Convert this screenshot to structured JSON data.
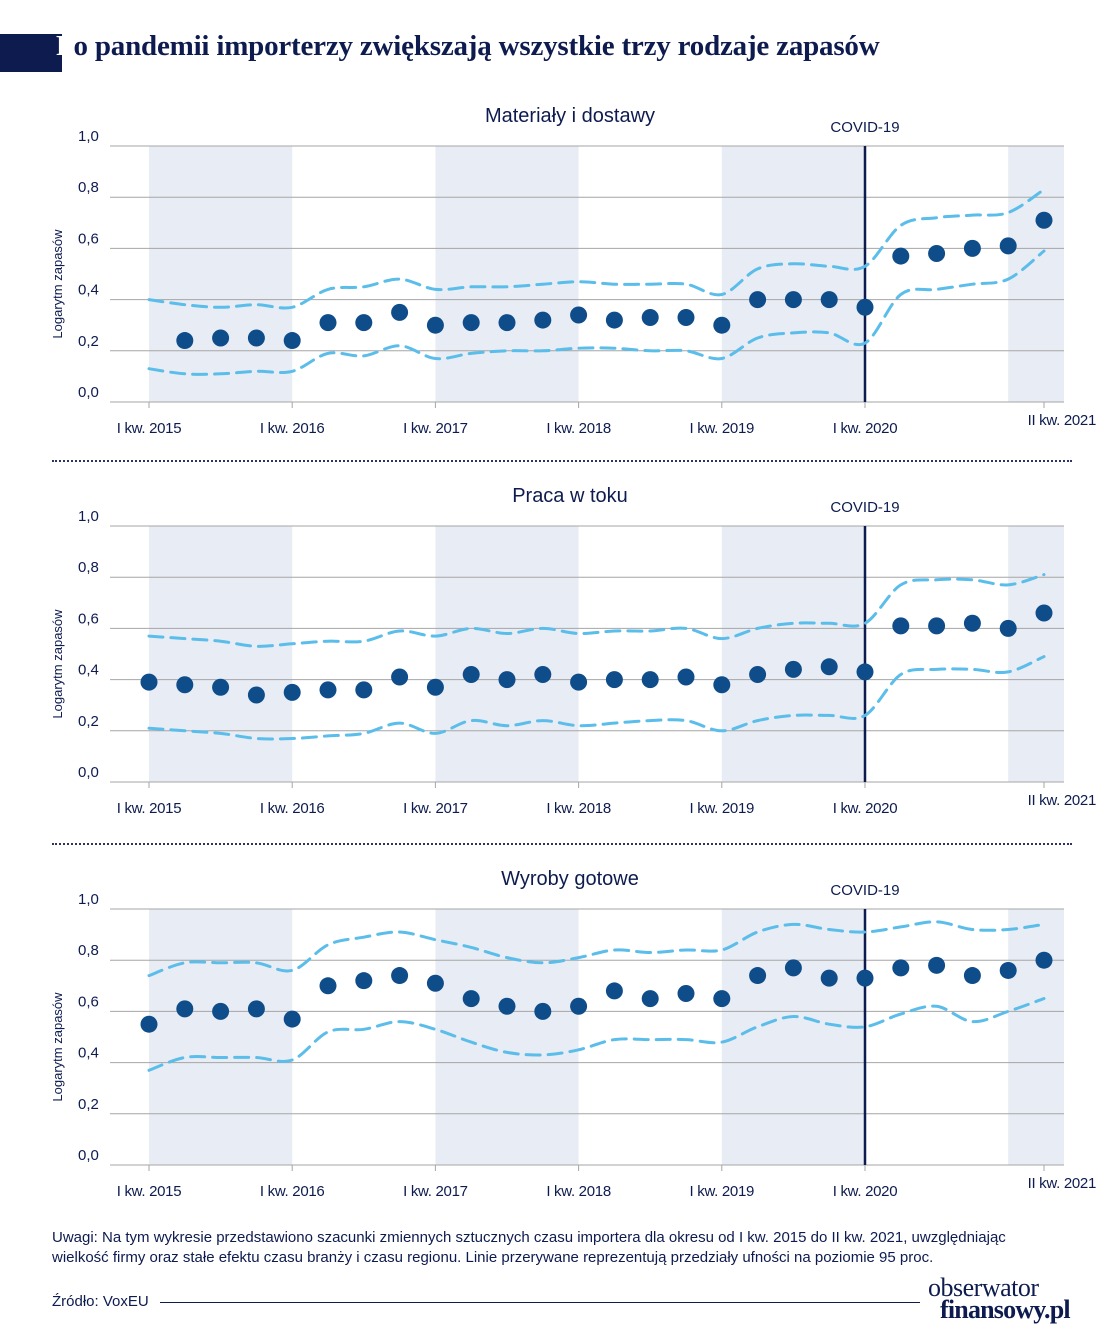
{
  "title": {
    "first_letter": "P",
    "rest": "o pandemii importerzy zwiększają wszystkie trzy rodzaje zapasów"
  },
  "colors": {
    "navy": "#0d1b4f",
    "dots": "#0f4c8a",
    "ci": "#5bbdea",
    "shade": "#e8ecf4",
    "grid": "#a6a6a6"
  },
  "note": "Uwagi: Na tym wykresie przedstawiono szacunki zmiennych sztucznych czasu importera dla okresu od I kw. 2015 do II kw. 2021, uwzględniając wielkość firmy oraz stałe efektu czasu branży i czasu regionu. Linie przerywane reprezentują przedziały ufności na poziomie 95 proc.",
  "source": "Źródło: VoxEU",
  "logo": {
    "line1": "obserwator",
    "line2": "finansowy.pl"
  },
  "chart_data": [
    {
      "type": "scatter",
      "title": "Materiały i dostawy",
      "ylabel": "Logarytm zapasów",
      "ylim": [
        0,
        1
      ],
      "yticks": [
        "0,0",
        "0,2",
        "0,4",
        "0,6",
        "0,8",
        "1,0"
      ],
      "xticks": [
        "I kw. 2015",
        "I kw. 2016",
        "I kw. 2017",
        "I kw. 2018",
        "I kw. 2019",
        "I kw. 2020",
        "II kw. 2021"
      ],
      "shaded_years": [
        "2015",
        "2017",
        "2019",
        "2021"
      ],
      "event_label": "COVID-19",
      "event_x": "I kw. 2020",
      "x": [
        "I kw. 2015",
        "II kw. 2015",
        "III kw. 2015",
        "IV kw. 2015",
        "I kw. 2016",
        "II kw. 2016",
        "III kw. 2016",
        "IV kw. 2016",
        "I kw. 2017",
        "II kw. 2017",
        "III kw. 2017",
        "IV kw. 2017",
        "I kw. 2018",
        "II kw. 2018",
        "III kw. 2018",
        "IV kw. 2018",
        "I kw. 2019",
        "II kw. 2019",
        "III kw. 2019",
        "IV kw. 2019",
        "I kw. 2020",
        "II kw. 2020",
        "III kw. 2020",
        "IV kw. 2020",
        "I kw. 2021",
        "II kw. 2021"
      ],
      "estimate": [
        null,
        0.24,
        0.25,
        0.25,
        0.24,
        0.31,
        0.31,
        0.35,
        0.3,
        0.31,
        0.31,
        0.32,
        0.34,
        0.32,
        0.33,
        0.33,
        0.3,
        0.4,
        0.4,
        0.4,
        0.37,
        0.57,
        0.58,
        0.6,
        0.61,
        0.71
      ],
      "upper": [
        0.4,
        0.38,
        0.37,
        0.38,
        0.37,
        0.44,
        0.45,
        0.48,
        0.44,
        0.45,
        0.45,
        0.46,
        0.47,
        0.46,
        0.46,
        0.46,
        0.42,
        0.52,
        0.54,
        0.53,
        0.53,
        0.69,
        0.72,
        0.73,
        0.74,
        0.83
      ],
      "lower": [
        0.13,
        0.11,
        0.11,
        0.12,
        0.12,
        0.19,
        0.18,
        0.22,
        0.17,
        0.19,
        0.2,
        0.2,
        0.21,
        0.21,
        0.2,
        0.2,
        0.17,
        0.25,
        0.27,
        0.27,
        0.23,
        0.42,
        0.44,
        0.46,
        0.48,
        0.59
      ]
    },
    {
      "type": "scatter",
      "title": "Praca w toku",
      "ylabel": "Logarytm zapasów",
      "ylim": [
        0,
        1
      ],
      "yticks": [
        "0,0",
        "0,2",
        "0,4",
        "0,6",
        "0,8",
        "1,0"
      ],
      "xticks": [
        "I kw. 2015",
        "I kw. 2016",
        "I kw. 2017",
        "I kw. 2018",
        "I kw. 2019",
        "I kw. 2020",
        "II kw. 2021"
      ],
      "shaded_years": [
        "2015",
        "2017",
        "2019",
        "2021"
      ],
      "event_label": "COVID-19",
      "event_x": "I kw. 2020",
      "x": [
        "I kw. 2015",
        "II kw. 2015",
        "III kw. 2015",
        "IV kw. 2015",
        "I kw. 2016",
        "II kw. 2016",
        "III kw. 2016",
        "IV kw. 2016",
        "I kw. 2017",
        "II kw. 2017",
        "III kw. 2017",
        "IV kw. 2017",
        "I kw. 2018",
        "II kw. 2018",
        "III kw. 2018",
        "IV kw. 2018",
        "I kw. 2019",
        "II kw. 2019",
        "III kw. 2019",
        "IV kw. 2019",
        "I kw. 2020",
        "II kw. 2020",
        "III kw. 2020",
        "IV kw. 2020",
        "I kw. 2021",
        "II kw. 2021"
      ],
      "estimate": [
        0.39,
        0.38,
        0.37,
        0.34,
        0.35,
        0.36,
        0.36,
        0.41,
        0.37,
        0.42,
        0.4,
        0.42,
        0.39,
        0.4,
        0.4,
        0.41,
        0.38,
        0.42,
        0.44,
        0.45,
        0.43,
        0.61,
        0.61,
        0.62,
        0.6,
        0.66
      ],
      "upper": [
        0.57,
        0.56,
        0.55,
        0.53,
        0.54,
        0.55,
        0.55,
        0.59,
        0.57,
        0.6,
        0.58,
        0.6,
        0.58,
        0.59,
        0.59,
        0.6,
        0.56,
        0.6,
        0.62,
        0.62,
        0.62,
        0.77,
        0.79,
        0.79,
        0.77,
        0.81
      ],
      "lower": [
        0.21,
        0.2,
        0.19,
        0.17,
        0.17,
        0.18,
        0.19,
        0.23,
        0.19,
        0.24,
        0.22,
        0.24,
        0.22,
        0.23,
        0.24,
        0.24,
        0.2,
        0.24,
        0.26,
        0.26,
        0.26,
        0.42,
        0.44,
        0.44,
        0.43,
        0.49
      ]
    },
    {
      "type": "scatter",
      "title": "Wyroby gotowe",
      "ylabel": "Logarytm zapasów",
      "ylim": [
        0,
        1
      ],
      "yticks": [
        "0,0",
        "0,2",
        "0,4",
        "0,6",
        "0,8",
        "1,0"
      ],
      "xticks": [
        "I kw. 2015",
        "I kw. 2016",
        "I kw. 2017",
        "I kw. 2018",
        "I kw. 2019",
        "I kw. 2020",
        "II kw. 2021"
      ],
      "shaded_years": [
        "2015",
        "2017",
        "2019",
        "2021"
      ],
      "event_label": "COVID-19",
      "event_x": "I kw. 2020",
      "x": [
        "I kw. 2015",
        "II kw. 2015",
        "III kw. 2015",
        "IV kw. 2015",
        "I kw. 2016",
        "II kw. 2016",
        "III kw. 2016",
        "IV kw. 2016",
        "I kw. 2017",
        "II kw. 2017",
        "III kw. 2017",
        "IV kw. 2017",
        "I kw. 2018",
        "II kw. 2018",
        "III kw. 2018",
        "IV kw. 2018",
        "I kw. 2019",
        "II kw. 2019",
        "III kw. 2019",
        "IV kw. 2019",
        "I kw. 2020",
        "II kw. 2020",
        "III kw. 2020",
        "IV kw. 2020",
        "I kw. 2021",
        "II kw. 2021"
      ],
      "estimate": [
        0.55,
        0.61,
        0.6,
        0.61,
        0.57,
        0.7,
        0.72,
        0.74,
        0.71,
        0.65,
        0.62,
        0.6,
        0.62,
        0.68,
        0.65,
        0.67,
        0.65,
        0.74,
        0.77,
        0.73,
        0.73,
        0.77,
        0.78,
        0.74,
        0.76,
        0.8
      ],
      "upper": [
        0.74,
        0.79,
        0.79,
        0.79,
        0.76,
        0.86,
        0.89,
        0.91,
        0.88,
        0.85,
        0.81,
        0.79,
        0.81,
        0.84,
        0.83,
        0.84,
        0.84,
        0.91,
        0.94,
        0.92,
        0.91,
        0.93,
        0.95,
        0.92,
        0.92,
        0.94
      ],
      "lower": [
        0.37,
        0.42,
        0.42,
        0.42,
        0.41,
        0.52,
        0.53,
        0.56,
        0.53,
        0.48,
        0.44,
        0.43,
        0.45,
        0.49,
        0.49,
        0.49,
        0.48,
        0.54,
        0.58,
        0.55,
        0.54,
        0.59,
        0.62,
        0.56,
        0.6,
        0.65
      ]
    }
  ]
}
